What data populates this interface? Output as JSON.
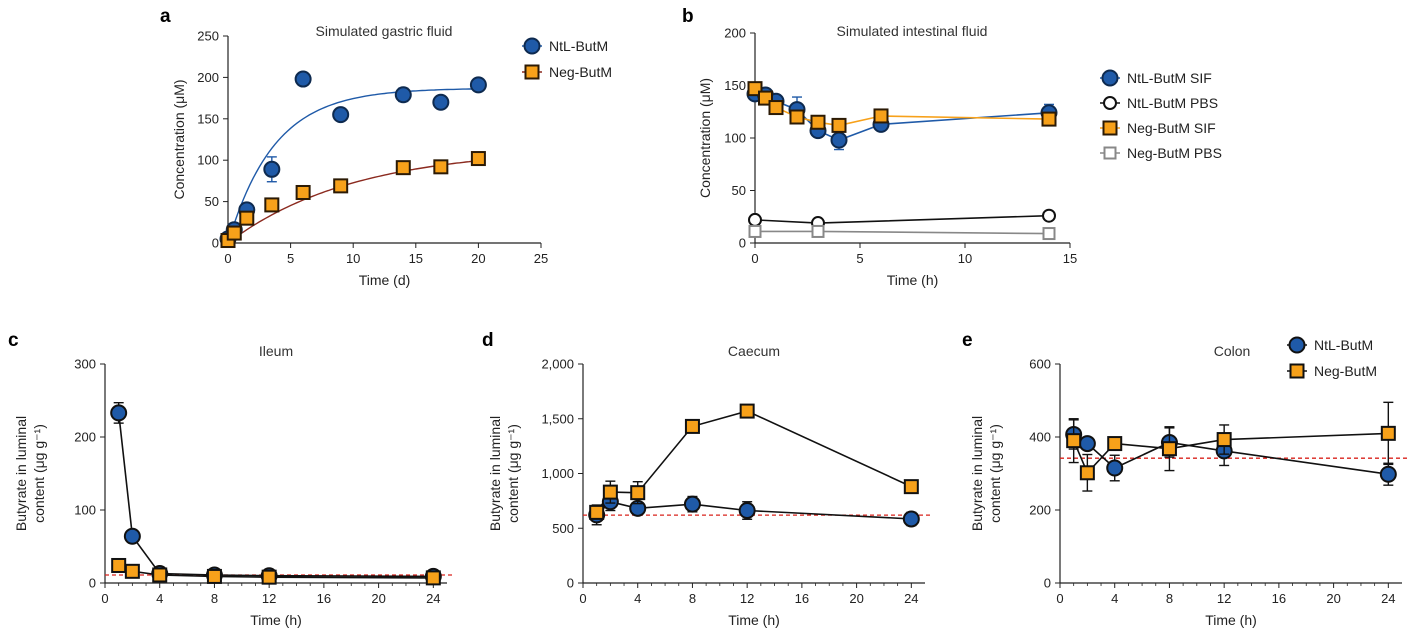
{
  "colors": {
    "blue": "#1f5aa8",
    "blueDark": "#0e2a4f",
    "orange": "#f7a11a",
    "orangeDark": "#2b1a05",
    "darkred": "#8b2a1f",
    "gray": "#888888",
    "refline": "#d9231c"
  },
  "chart_data": [
    {
      "id": "a",
      "panel_label": "a",
      "type": "scatter",
      "title": "Simulated gastric fluid",
      "xlabel": "Time (d)",
      "ylabel": "Concentration (μM)",
      "xlim": [
        0,
        25
      ],
      "ylim": [
        0,
        250
      ],
      "xticks": [
        0,
        5,
        10,
        15,
        20,
        25
      ],
      "yticks": [
        0,
        50,
        100,
        150,
        200,
        250
      ],
      "legend_position": "top-right",
      "series": [
        {
          "name": "NtL-ButM",
          "marker": "circle",
          "fill": "#1f5aa8",
          "stroke": "#0e2a4f",
          "line": "fit",
          "fit_color": "#1f5aa8",
          "fit": {
            "type": "exp",
            "plateau": 187,
            "k": 0.27
          },
          "points": [
            [
              0,
              5,
              0
            ],
            [
              0.5,
              16,
              0
            ],
            [
              1.5,
              40,
              0
            ],
            [
              3.5,
              89,
              15
            ],
            [
              6,
              198,
              0
            ],
            [
              9,
              155,
              0
            ],
            [
              14,
              179,
              8
            ],
            [
              17,
              170,
              0
            ],
            [
              20,
              191,
              0
            ]
          ]
        },
        {
          "name": "Neg-ButM",
          "marker": "square",
          "fill": "#f7a11a",
          "stroke": "#2b1a05",
          "line": "fit",
          "fit_color": "#8b2a1f",
          "fit": {
            "type": "exp",
            "plateau": 115,
            "k": 0.1
          },
          "points": [
            [
              0,
              3,
              0
            ],
            [
              0.5,
              12,
              0
            ],
            [
              1.5,
              30,
              0
            ],
            [
              3.5,
              46,
              0
            ],
            [
              6,
              61,
              0
            ],
            [
              9,
              69,
              0
            ],
            [
              14,
              91,
              0
            ],
            [
              17,
              92,
              0
            ],
            [
              20,
              102,
              6
            ]
          ]
        }
      ]
    },
    {
      "id": "b",
      "panel_label": "b",
      "type": "line",
      "title": "Simulated intestinal fluid",
      "xlabel": "Time (h)",
      "ylabel": "Concentration (μM)",
      "xlim": [
        0,
        15
      ],
      "ylim": [
        0,
        200
      ],
      "xticks": [
        0,
        5,
        10,
        15
      ],
      "yticks": [
        0,
        50,
        100,
        150,
        200
      ],
      "legend_position": "right",
      "series": [
        {
          "name": "NtL-ButM SIF",
          "marker": "circle",
          "fill": "#1f5aa8",
          "stroke": "#0e2a4f",
          "line": "connect",
          "line_color": "#1f5aa8",
          "points": [
            [
              0,
              142,
              0
            ],
            [
              0.5,
              141,
              0
            ],
            [
              1,
              135,
              0
            ],
            [
              2,
              127,
              12
            ],
            [
              3,
              107,
              6
            ],
            [
              4,
              98,
              9
            ],
            [
              6,
              113,
              0
            ],
            [
              14,
              124,
              8
            ]
          ]
        },
        {
          "name": "NtL-ButM PBS",
          "marker": "circle-open",
          "fill": "#ffffff",
          "stroke": "#111111",
          "line": "connect",
          "line_color": "#111111",
          "points": [
            [
              0,
              22,
              6
            ],
            [
              3,
              19,
              0
            ],
            [
              14,
              26,
              0
            ]
          ]
        },
        {
          "name": "Neg-ButM SIF",
          "marker": "square",
          "fill": "#f7a11a",
          "stroke": "#2b1a05",
          "line": "connect",
          "line_color": "#f7a11a",
          "points": [
            [
              0,
              147,
              0
            ],
            [
              0.5,
              138,
              0
            ],
            [
              1,
              129,
              0
            ],
            [
              2,
              120,
              0
            ],
            [
              3,
              115,
              0
            ],
            [
              4,
              112,
              0
            ],
            [
              6,
              121,
              0
            ],
            [
              14,
              118,
              0
            ]
          ]
        },
        {
          "name": "Neg-ButM PBS",
          "marker": "square-open",
          "fill": "#ffffff",
          "stroke": "#888888",
          "line": "connect",
          "line_color": "#888888",
          "points": [
            [
              0,
              11,
              0
            ],
            [
              3,
              11,
              0
            ],
            [
              14,
              9,
              0
            ]
          ]
        }
      ]
    },
    {
      "id": "c",
      "panel_label": "c",
      "type": "line",
      "title": "Ileum",
      "xlabel": "Time (h)",
      "ylabel": "Butyrate in luminal content (μg g⁻¹)",
      "ylabel_lines": [
        "Butyrate in luminal",
        "content (μg g⁻¹)"
      ],
      "xlim": [
        0,
        25
      ],
      "ylim": [
        0,
        300
      ],
      "xticks": [
        0,
        4,
        8,
        12,
        16,
        20,
        24
      ],
      "yticks": [
        0,
        100,
        200,
        300
      ],
      "reference_line": 11,
      "series": [
        {
          "name": "NtL-ButM",
          "marker": "circle",
          "fill": "#1f5aa8",
          "stroke": "#111111",
          "line": "connect",
          "line_color": "#111111",
          "points": [
            [
              1,
              233,
              14
            ],
            [
              2,
              64,
              0
            ],
            [
              4,
              13,
              0
            ],
            [
              8,
              11,
              0
            ],
            [
              12,
              10,
              0
            ],
            [
              24,
              9,
              0
            ]
          ]
        },
        {
          "name": "Neg-ButM",
          "marker": "square",
          "fill": "#f7a11a",
          "stroke": "#111111",
          "line": "connect",
          "line_color": "#111111",
          "points": [
            [
              1,
              24,
              0
            ],
            [
              2,
              16,
              0
            ],
            [
              4,
              11,
              0
            ],
            [
              8,
              9,
              0
            ],
            [
              12,
              8,
              0
            ],
            [
              24,
              7,
              0
            ]
          ]
        }
      ]
    },
    {
      "id": "d",
      "panel_label": "d",
      "type": "line",
      "title": "Caecum",
      "xlabel": "Time (h)",
      "ylabel": "Butyrate in luminal content (μg g⁻¹)",
      "ylabel_lines": [
        "Butyrate in luminal",
        "content (μg g⁻¹)"
      ],
      "xlim": [
        0,
        25
      ],
      "ylim": [
        0,
        2000
      ],
      "xticks": [
        0,
        4,
        8,
        12,
        16,
        20,
        24
      ],
      "yticks": [
        0,
        500,
        1000,
        1500,
        2000
      ],
      "ytick_labels": [
        "0",
        "500",
        "1,000",
        "1,500",
        "2,000"
      ],
      "reference_line": 620,
      "series": [
        {
          "name": "NtL-ButM",
          "marker": "circle",
          "fill": "#1f5aa8",
          "stroke": "#111111",
          "line": "connect",
          "line_color": "#111111",
          "points": [
            [
              1,
              622,
              90
            ],
            [
              2,
              742,
              80
            ],
            [
              4,
              682,
              0
            ],
            [
              8,
              720,
              70
            ],
            [
              12,
              662,
              80
            ],
            [
              24,
              585,
              60
            ]
          ]
        },
        {
          "name": "Neg-ButM",
          "marker": "square",
          "fill": "#f7a11a",
          "stroke": "#111111",
          "line": "connect",
          "line_color": "#111111",
          "points": [
            [
              1,
              645,
              0
            ],
            [
              2,
              830,
              100
            ],
            [
              4,
              825,
              100
            ],
            [
              8,
              1430,
              0
            ],
            [
              12,
              1570,
              40
            ],
            [
              24,
              880,
              0
            ]
          ]
        }
      ]
    },
    {
      "id": "e",
      "panel_label": "e",
      "type": "line",
      "title": "Colon",
      "xlabel": "Time (h)",
      "ylabel": "Butyrate in luminal content (μg g⁻¹)",
      "ylabel_lines": [
        "Butyrate in luminal",
        "content (μg g⁻¹)"
      ],
      "xlim": [
        0,
        25
      ],
      "ylim": [
        0,
        600
      ],
      "xticks": [
        0,
        4,
        8,
        12,
        16,
        20,
        24
      ],
      "yticks": [
        0,
        200,
        400,
        600
      ],
      "reference_line": 342,
      "legend_position": "top-right",
      "series": [
        {
          "name": "NtL-ButM",
          "marker": "circle",
          "fill": "#1f5aa8",
          "stroke": "#111111",
          "line": "connect",
          "line_color": "#111111",
          "points": [
            [
              1,
              407,
              40
            ],
            [
              2,
              382,
              0
            ],
            [
              4,
              315,
              35
            ],
            [
              8,
              385,
              40
            ],
            [
              12,
              362,
              40
            ],
            [
              24,
              298,
              30
            ]
          ]
        },
        {
          "name": "Neg-ButM",
          "marker": "square",
          "fill": "#f7a11a",
          "stroke": "#111111",
          "line": "connect",
          "line_color": "#111111",
          "points": [
            [
              1,
              390,
              60
            ],
            [
              2,
              302,
              50
            ],
            [
              4,
              382,
              0
            ],
            [
              8,
              368,
              60
            ],
            [
              12,
              393,
              40
            ],
            [
              24,
              410,
              85
            ]
          ]
        }
      ]
    }
  ]
}
